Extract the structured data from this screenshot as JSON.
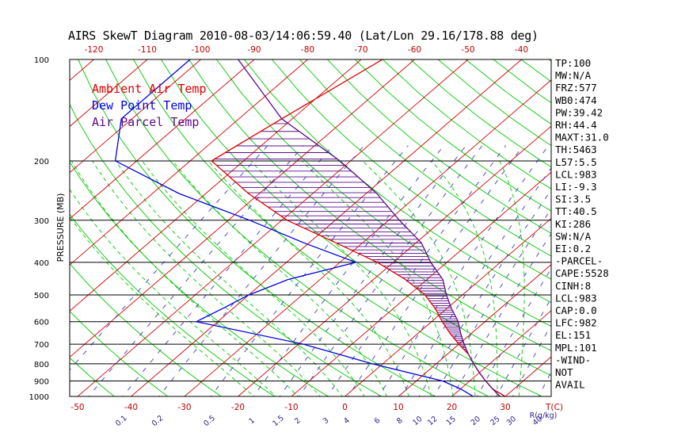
{
  "chart_data": {
    "type": "skewt",
    "title": "AIRS SkewT Diagram 2010-08-03/14:06:59.40 (Lat/Lon 29.16/178.88 deg)",
    "ylabel": "PRESSURE (MB)",
    "xlabel": "T(C)",
    "mixing_ratio_unit": "R(g/kg)",
    "pressure_levels": [
      100,
      200,
      300,
      400,
      500,
      600,
      700,
      800,
      900,
      1000
    ],
    "temp_ticks_top": [
      -120,
      -110,
      -100,
      -90,
      -80,
      -70,
      -60,
      -50,
      -40
    ],
    "temp_ticks_bottom": [
      -50,
      -40,
      -30,
      -20,
      -10,
      0,
      10,
      20,
      30
    ],
    "mixing_ratio_ticks": [
      "0.1",
      "0.2",
      "0.5",
      "1",
      "1.5",
      "2",
      "3",
      "4",
      "6",
      "8",
      "10",
      "12",
      "15",
      "20",
      "25",
      "30",
      "40"
    ],
    "legend": [
      "Ambient Air Temp",
      "Dew Point Temp",
      "Air Parcel Temp"
    ],
    "colors": {
      "ambient": "#e00000",
      "dewpoint": "#0000e6",
      "parcel": "#5a0a8a",
      "isotherm": "#d40000",
      "dry_adiabat": "#00c800",
      "moist_adiabat": "#00c800",
      "mixing_ratio": "#3a3ac8",
      "cape_hatch": "#5a0a8a"
    },
    "series": [
      {
        "name": "Ambient Air Temp",
        "points": [
          [
            100,
            -66
          ],
          [
            150,
            -72
          ],
          [
            200,
            -76
          ],
          [
            250,
            -62
          ],
          [
            300,
            -49
          ],
          [
            350,
            -35
          ],
          [
            400,
            -23
          ],
          [
            450,
            -14
          ],
          [
            500,
            -7
          ],
          [
            550,
            -2
          ],
          [
            600,
            2
          ],
          [
            650,
            6
          ],
          [
            700,
            10
          ],
          [
            750,
            14
          ],
          [
            800,
            17
          ],
          [
            850,
            20
          ],
          [
            900,
            23
          ],
          [
            950,
            26
          ],
          [
            1000,
            30
          ]
        ]
      },
      {
        "name": "Dew Point Temp",
        "points": [
          [
            100,
            -102
          ],
          [
            150,
            -102
          ],
          [
            200,
            -94
          ],
          [
            250,
            -75
          ],
          [
            300,
            -56
          ],
          [
            350,
            -41
          ],
          [
            400,
            -27
          ],
          [
            450,
            -36
          ],
          [
            500,
            -40
          ],
          [
            550,
            -42
          ],
          [
            600,
            -44
          ],
          [
            700,
            -19
          ],
          [
            800,
            -2
          ],
          [
            900,
            15
          ],
          [
            950,
            20
          ],
          [
            1000,
            24
          ]
        ]
      },
      {
        "name": "Air Parcel Temp",
        "points": [
          [
            100,
            -93
          ],
          [
            150,
            -72
          ],
          [
            200,
            -52
          ],
          [
            250,
            -38
          ],
          [
            300,
            -28
          ],
          [
            350,
            -19
          ],
          [
            400,
            -13
          ],
          [
            450,
            -7
          ],
          [
            500,
            -3
          ],
          [
            550,
            1
          ],
          [
            600,
            5
          ],
          [
            650,
            8
          ],
          [
            700,
            11
          ],
          [
            750,
            14
          ],
          [
            800,
            17
          ],
          [
            850,
            20
          ],
          [
            900,
            23
          ],
          [
            950,
            26
          ],
          [
            1000,
            29
          ]
        ]
      }
    ],
    "indices": [
      "TP:100",
      "MW:N/A",
      "FRZ:577",
      "WB0:474",
      "PW:39.42",
      "RH:44.4",
      "MAXT:31.0",
      "TH:5463",
      "L57:5.5",
      "LCL:983",
      "LI:-9.3",
      "SI:3.5",
      "TT:40.5",
      "KI:286",
      "SW:N/A",
      "EI:0.2",
      "-PARCEL-",
      "CAPE:5528",
      "CINH:8",
      "LCL:983",
      "CAP:0.0",
      "LFC:982",
      "EL:151",
      "MPL:101",
      "-WIND-",
      "NOT",
      "AVAIL"
    ]
  }
}
